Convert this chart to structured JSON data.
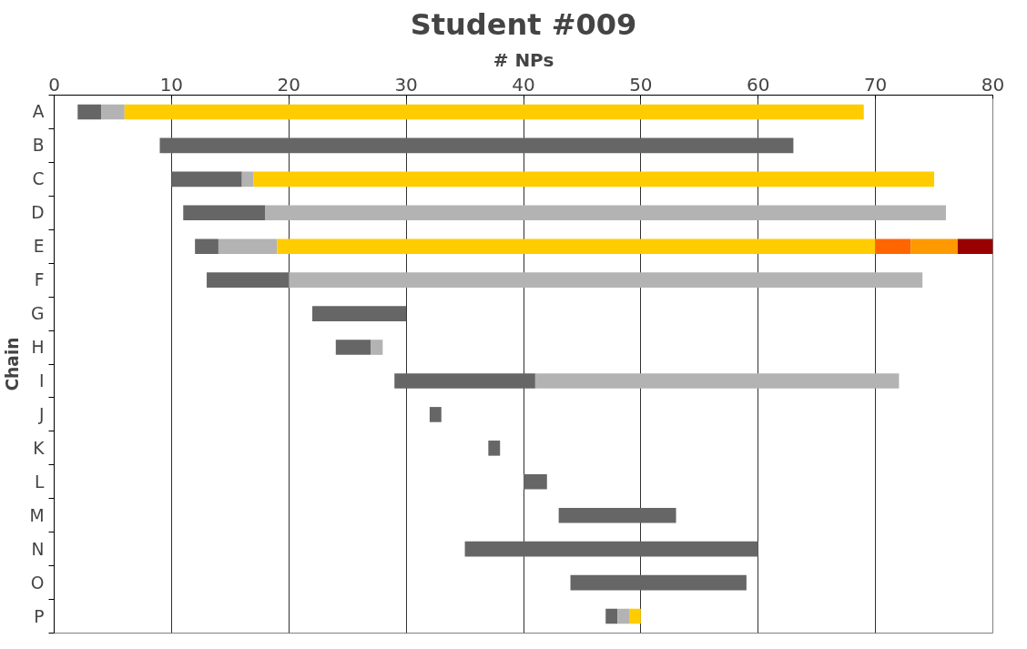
{
  "chart_data": {
    "type": "bar",
    "orientation": "horizontal",
    "title": "Student #009",
    "xlabel": "# NPs",
    "ylabel": "Chain",
    "categories": [
      "A",
      "B",
      "C",
      "D",
      "E",
      "F",
      "G",
      "H",
      "I",
      "J",
      "K",
      "L",
      "M",
      "N",
      "O",
      "P"
    ],
    "series": [
      {
        "color": "#666666",
        "base": [
          2,
          9,
          10,
          11,
          12,
          13,
          22,
          24,
          29,
          32,
          37,
          40,
          43,
          35,
          44,
          47
        ],
        "values": [
          2,
          54,
          6,
          7,
          2,
          7,
          8,
          3,
          12,
          1,
          1,
          2,
          10,
          25,
          15,
          1
        ]
      },
      {
        "color": "#b3b3b3",
        "base": [
          4,
          null,
          16,
          18,
          14,
          20,
          null,
          27,
          41,
          null,
          null,
          null,
          null,
          null,
          null,
          48
        ],
        "values": [
          2,
          null,
          1,
          58,
          5,
          54,
          null,
          1,
          31,
          null,
          null,
          null,
          null,
          null,
          null,
          1
        ]
      },
      {
        "color": "#ffcc00",
        "base": [
          6,
          null,
          17,
          null,
          19,
          null,
          null,
          null,
          null,
          null,
          null,
          null,
          null,
          null,
          null,
          49
        ],
        "values": [
          63,
          null,
          58,
          null,
          51,
          null,
          null,
          null,
          null,
          null,
          null,
          null,
          null,
          null,
          null,
          1
        ]
      },
      {
        "color": "#ff6600",
        "base": [
          null,
          null,
          null,
          null,
          70,
          null,
          null,
          null,
          null,
          null,
          null,
          null,
          null,
          null,
          null,
          null
        ],
        "values": [
          null,
          null,
          null,
          null,
          3,
          null,
          null,
          null,
          null,
          null,
          null,
          null,
          null,
          null,
          null,
          null
        ]
      },
      {
        "color": "#ff9900",
        "base": [
          null,
          null,
          null,
          null,
          73,
          null,
          null,
          null,
          null,
          null,
          null,
          null,
          null,
          null,
          null,
          null
        ],
        "values": [
          null,
          null,
          null,
          null,
          4,
          null,
          null,
          null,
          null,
          null,
          null,
          null,
          null,
          null,
          null,
          null
        ]
      },
      {
        "color": "#990000",
        "base": [
          null,
          null,
          null,
          null,
          77,
          null,
          null,
          null,
          null,
          null,
          null,
          null,
          null,
          null,
          null,
          null
        ],
        "values": [
          null,
          null,
          null,
          null,
          3,
          null,
          null,
          null,
          null,
          null,
          null,
          null,
          null,
          null,
          null,
          null
        ]
      }
    ],
    "xlim": [
      0,
      80
    ],
    "xticks": [
      0,
      10,
      20,
      30,
      40,
      50,
      60,
      70,
      80
    ],
    "grid": "x"
  }
}
